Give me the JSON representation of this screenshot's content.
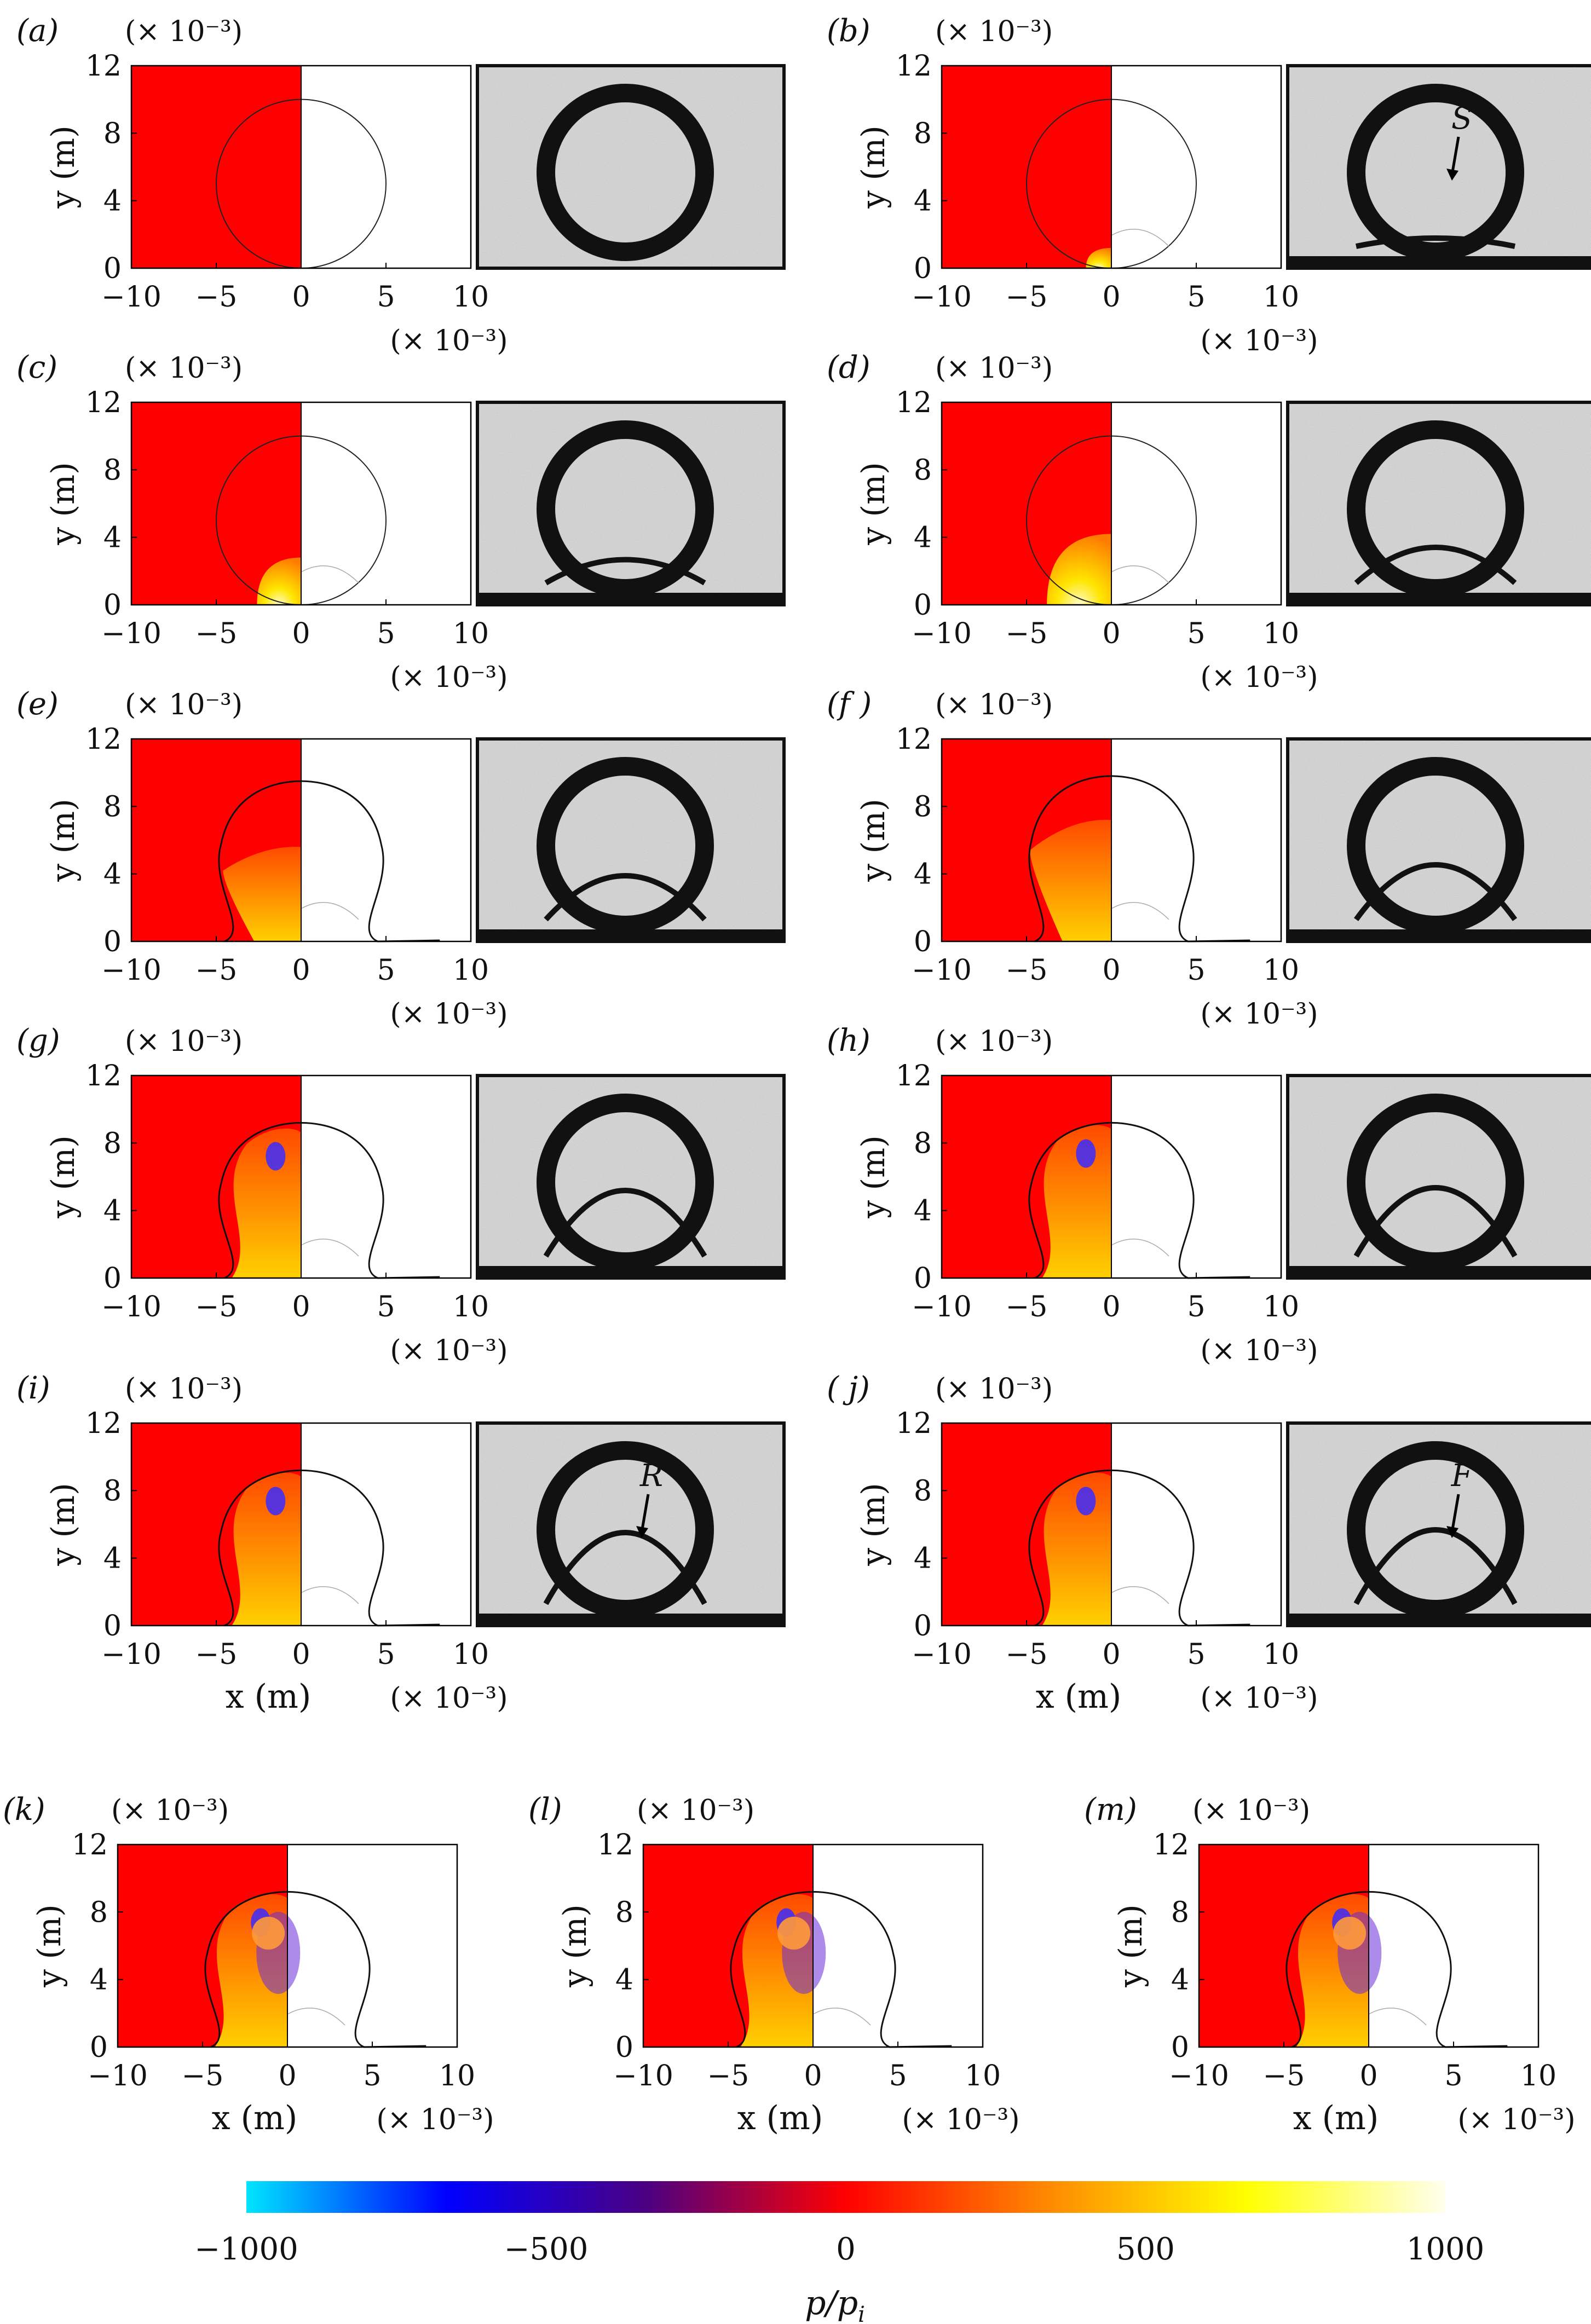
{
  "figure": {
    "colors": {
      "background": "#ffffff",
      "red_region": "#ff0000",
      "photo_grey": "#d6d6d6",
      "photo_dark": "#111111"
    },
    "scale_label": "(× 10⁻³)",
    "y_axis_label": "y (m)",
    "x_axis_label": "x (m)",
    "y_ticks": [
      "0",
      "4",
      "8",
      "12"
    ],
    "x_ticks": [
      "−10",
      "−5",
      "0",
      "5",
      "10"
    ],
    "panels": [
      {
        "letter": "(a)",
        "stage": "initial",
        "photo_label": ""
      },
      {
        "letter": "(b)",
        "stage": "early",
        "photo_label": "S"
      },
      {
        "letter": "(c)",
        "stage": "growth1",
        "photo_label": ""
      },
      {
        "letter": "(d)",
        "stage": "growth2",
        "photo_label": ""
      },
      {
        "letter": "(e)",
        "stage": "growth3",
        "photo_label": ""
      },
      {
        "letter": "(f )",
        "stage": "growth4",
        "photo_label": ""
      },
      {
        "letter": "(g)",
        "stage": "late1",
        "photo_label": ""
      },
      {
        "letter": "(h)",
        "stage": "late2",
        "photo_label": ""
      },
      {
        "letter": "(i)",
        "stage": "late3",
        "photo_label": "R"
      },
      {
        "letter": "( j)",
        "stage": "late4",
        "photo_label": "F"
      },
      {
        "letter": "(k)",
        "stage": "sim1",
        "photo_label": ""
      },
      {
        "letter": "(l)",
        "stage": "sim2",
        "photo_label": ""
      },
      {
        "letter": "(m)",
        "stage": "sim3",
        "photo_label": ""
      }
    ],
    "colorbar": {
      "ticks": [
        "−1000",
        "−500",
        "0",
        "500",
        "1000"
      ],
      "label": "p/p",
      "label_sub": "i",
      "stops": [
        "#00e5ff",
        "#0000ff",
        "#4b0082",
        "#ff0000",
        "#ff8800",
        "#ffff00",
        "#ffffee"
      ]
    }
  }
}
